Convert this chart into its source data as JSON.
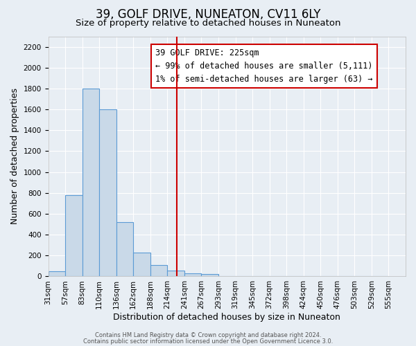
{
  "title": "39, GOLF DRIVE, NUNEATON, CV11 6LY",
  "subtitle": "Size of property relative to detached houses in Nuneaton",
  "xlabel": "Distribution of detached houses by size in Nuneaton",
  "ylabel": "Number of detached properties",
  "bin_labels": [
    "31sqm",
    "57sqm",
    "83sqm",
    "110sqm",
    "136sqm",
    "162sqm",
    "188sqm",
    "214sqm",
    "241sqm",
    "267sqm",
    "293sqm",
    "319sqm",
    "345sqm",
    "372sqm",
    "398sqm",
    "424sqm",
    "450sqm",
    "476sqm",
    "503sqm",
    "529sqm",
    "555sqm"
  ],
  "bar_values": [
    50,
    780,
    1800,
    1600,
    520,
    230,
    110,
    55,
    30,
    20,
    0,
    0,
    0,
    0,
    0,
    0,
    0,
    0,
    0,
    0
  ],
  "bar_color": "#c9d9e8",
  "bar_edge_color": "#5b9bd5",
  "ylim": [
    0,
    2300
  ],
  "yticks": [
    0,
    200,
    400,
    600,
    800,
    1000,
    1200,
    1400,
    1600,
    1800,
    2000,
    2200
  ],
  "vline_color": "#cc0000",
  "vline_x": 7.55,
  "annotation_title": "39 GOLF DRIVE: 225sqm",
  "annotation_line1": "← 99% of detached houses are smaller (5,111)",
  "annotation_line2": "1% of semi-detached houses are larger (63) →",
  "footer1": "Contains HM Land Registry data © Crown copyright and database right 2024.",
  "footer2": "Contains public sector information licensed under the Open Government Licence 3.0.",
  "background_color": "#e8eef4",
  "grid_color": "#ffffff",
  "title_fontsize": 12,
  "subtitle_fontsize": 9.5,
  "xlabel_fontsize": 9,
  "ylabel_fontsize": 9,
  "tick_fontsize": 7.5,
  "annotation_fontsize": 8.5
}
